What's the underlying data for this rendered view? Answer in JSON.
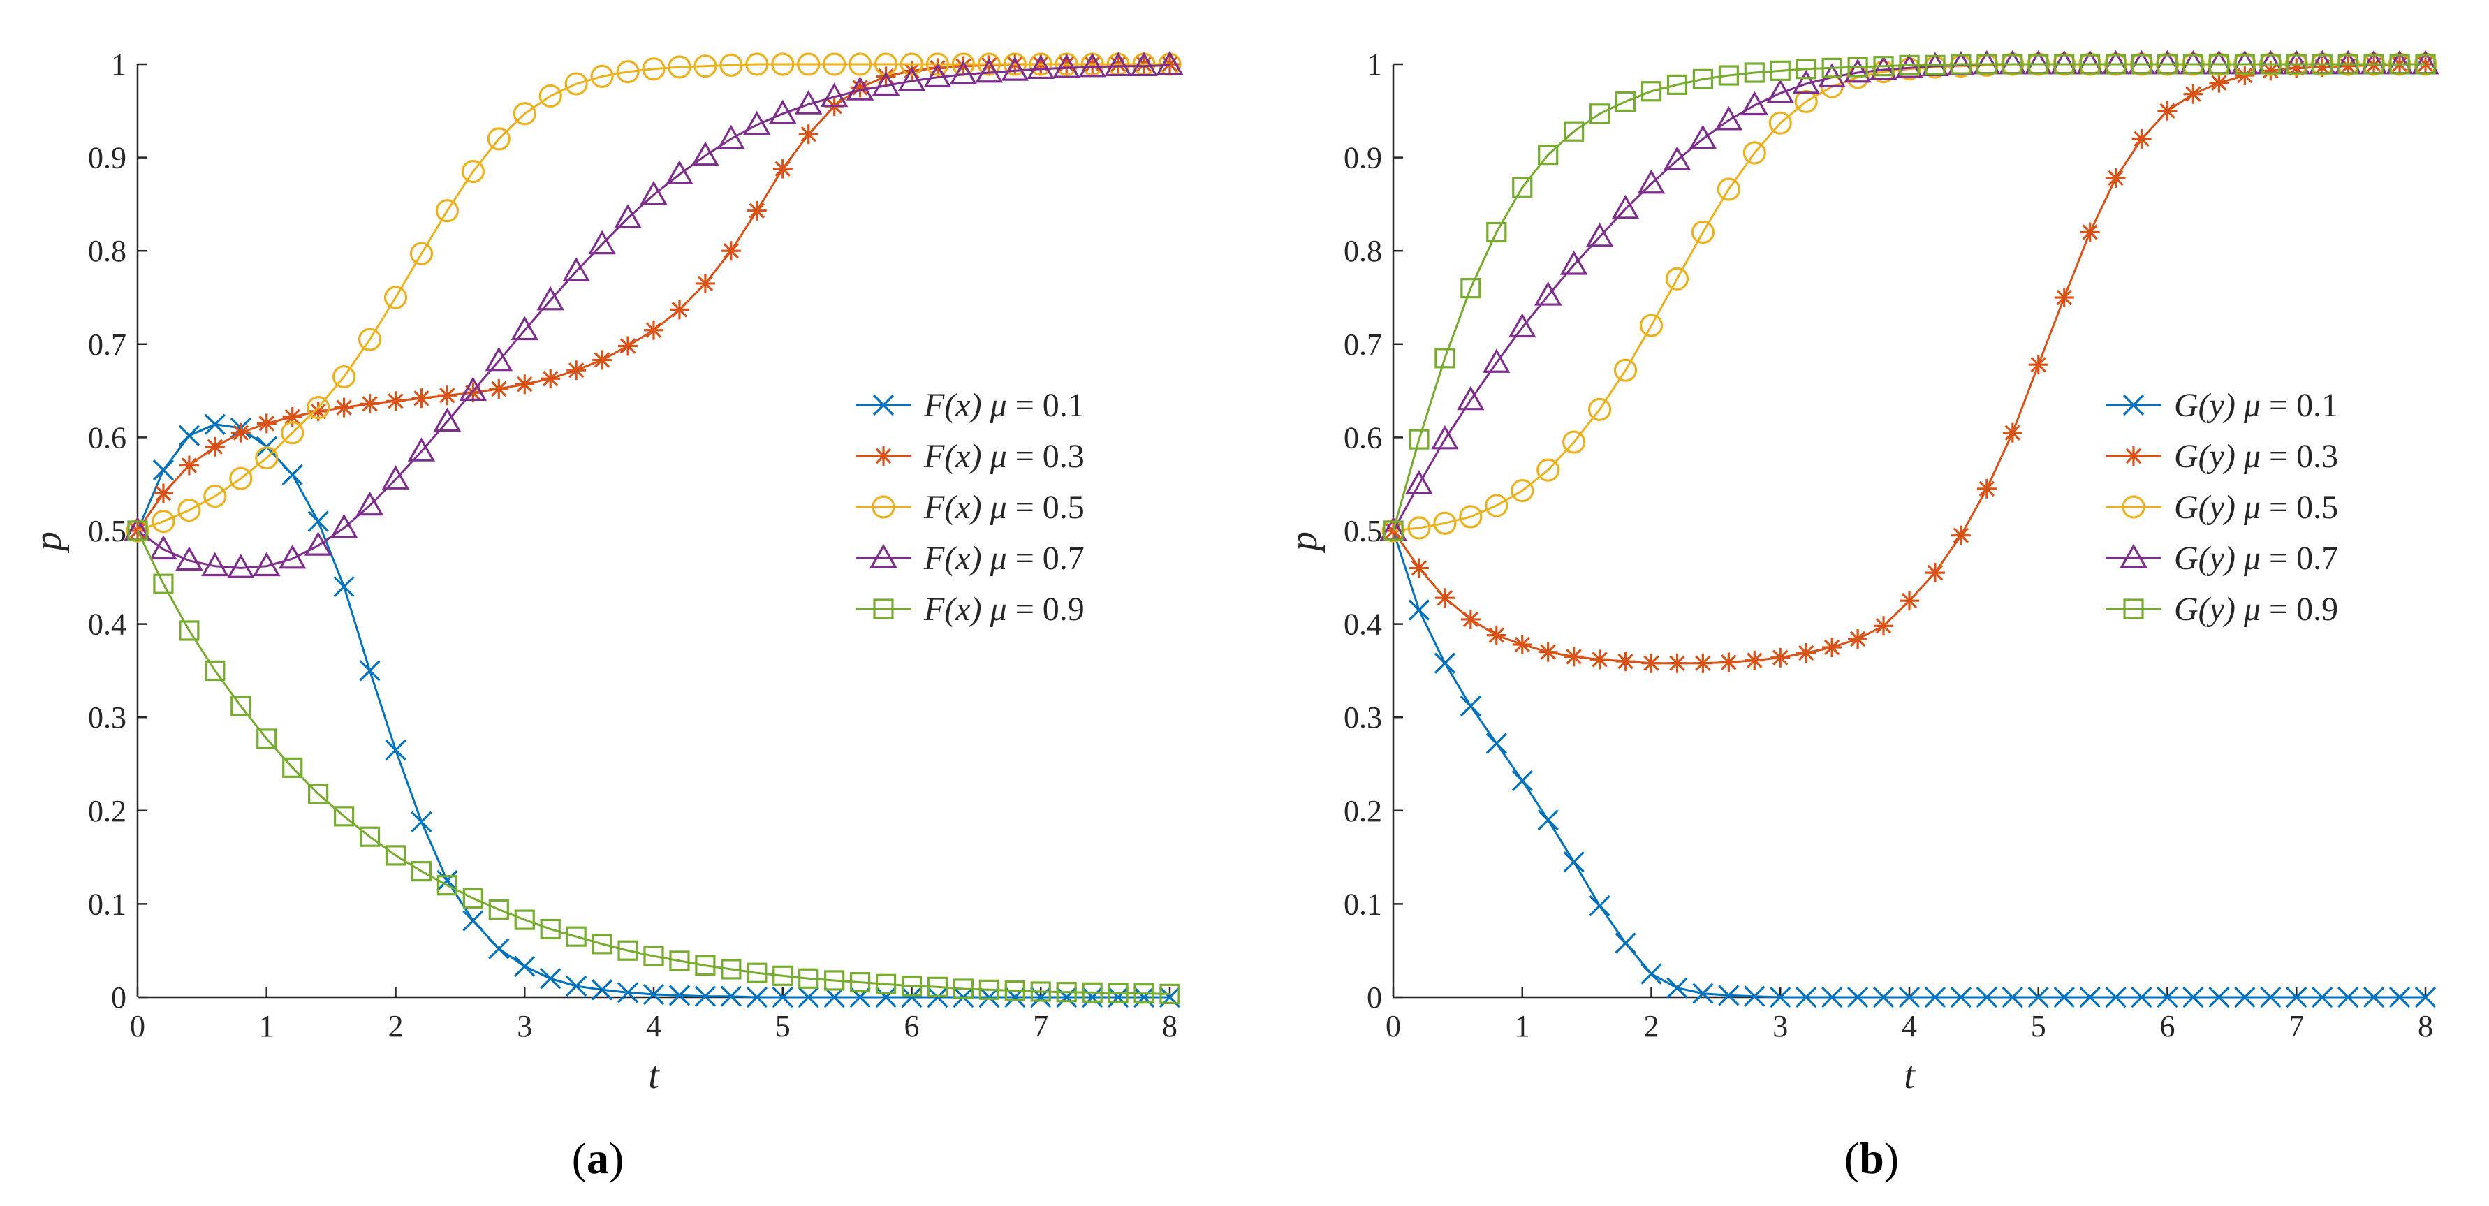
{
  "chart_data": [
    {
      "type": "line",
      "panel_label": "a",
      "xlabel": "t",
      "ylabel": "p",
      "xlim": [
        0,
        8
      ],
      "ylim": [
        0,
        1
      ],
      "xticks": [
        "0",
        "1",
        "2",
        "3",
        "4",
        "5",
        "6",
        "7",
        "8"
      ],
      "yticks": [
        "0",
        "0.1",
        "0.2",
        "0.3",
        "0.4",
        "0.5",
        "0.6",
        "0.7",
        "0.8",
        "0.9",
        "1"
      ],
      "legend_position": "center-right",
      "x": [
        0,
        0.2,
        0.4,
        0.6,
        0.8,
        1.0,
        1.2,
        1.4,
        1.6,
        1.8,
        2.0,
        2.2,
        2.4,
        2.6,
        2.8,
        3.0,
        3.2,
        3.4,
        3.6,
        3.8,
        4.0,
        4.2,
        4.4,
        4.6,
        4.8,
        5.0,
        5.2,
        5.4,
        5.6,
        5.8,
        6.0,
        6.2,
        6.4,
        6.6,
        6.8,
        7.0,
        7.2,
        7.4,
        7.6,
        7.8,
        8.0
      ],
      "series": [
        {
          "func": "F(x)",
          "mu_label": "μ = 0.1",
          "color": "#0072BD",
          "marker": "x",
          "values": [
            0.5,
            0.565,
            0.602,
            0.614,
            0.61,
            0.59,
            0.56,
            0.51,
            0.44,
            0.35,
            0.265,
            0.188,
            0.125,
            0.082,
            0.052,
            0.033,
            0.02,
            0.012,
            0.008,
            0.005,
            0.003,
            0.002,
            0.001,
            0.001,
            0,
            0,
            0,
            0,
            0,
            0,
            0,
            0,
            0,
            0,
            0,
            0,
            0,
            0,
            0,
            0,
            0
          ]
        },
        {
          "func": "F(x)",
          "mu_label": "μ = 0.3",
          "color": "#D95319",
          "marker": "star",
          "values": [
            0.5,
            0.54,
            0.57,
            0.59,
            0.605,
            0.615,
            0.622,
            0.628,
            0.632,
            0.636,
            0.639,
            0.642,
            0.645,
            0.648,
            0.652,
            0.657,
            0.663,
            0.672,
            0.683,
            0.698,
            0.715,
            0.737,
            0.765,
            0.8,
            0.843,
            0.888,
            0.925,
            0.955,
            0.975,
            0.987,
            0.993,
            0.996,
            0.998,
            0.999,
            1.0,
            1.0,
            1.0,
            1.0,
            1.0,
            1.0,
            1.0
          ]
        },
        {
          "func": "F(x)",
          "mu_label": "μ = 0.5",
          "color": "#EDB120",
          "marker": "circle",
          "values": [
            0.5,
            0.51,
            0.522,
            0.537,
            0.556,
            0.578,
            0.605,
            0.632,
            0.665,
            0.705,
            0.75,
            0.797,
            0.843,
            0.885,
            0.92,
            0.947,
            0.966,
            0.979,
            0.987,
            0.992,
            0.995,
            0.997,
            0.998,
            0.999,
            1.0,
            1.0,
            1.0,
            1.0,
            1.0,
            1.0,
            1.0,
            1.0,
            1.0,
            1.0,
            1.0,
            1.0,
            1.0,
            1.0,
            1.0,
            1.0,
            1.0
          ]
        },
        {
          "func": "F(x)",
          "mu_label": "μ = 0.7",
          "color": "#7E2F8E",
          "marker": "triangle",
          "values": [
            0.5,
            0.48,
            0.468,
            0.462,
            0.46,
            0.462,
            0.47,
            0.484,
            0.503,
            0.527,
            0.555,
            0.585,
            0.617,
            0.65,
            0.682,
            0.715,
            0.747,
            0.778,
            0.807,
            0.835,
            0.86,
            0.882,
            0.902,
            0.92,
            0.935,
            0.947,
            0.957,
            0.965,
            0.972,
            0.977,
            0.982,
            0.986,
            0.989,
            0.991,
            0.993,
            0.995,
            0.996,
            0.997,
            0.998,
            0.998,
            0.999
          ]
        },
        {
          "func": "F(x)",
          "mu_label": "μ = 0.9",
          "color": "#77AC30",
          "marker": "square",
          "values": [
            0.5,
            0.443,
            0.393,
            0.35,
            0.312,
            0.277,
            0.246,
            0.218,
            0.194,
            0.172,
            0.152,
            0.135,
            0.12,
            0.106,
            0.094,
            0.083,
            0.073,
            0.065,
            0.057,
            0.05,
            0.044,
            0.039,
            0.034,
            0.03,
            0.026,
            0.023,
            0.02,
            0.018,
            0.016,
            0.014,
            0.012,
            0.011,
            0.009,
            0.008,
            0.007,
            0.006,
            0.0055,
            0.005,
            0.0045,
            0.004,
            0.0035
          ]
        }
      ]
    },
    {
      "type": "line",
      "panel_label": "b",
      "xlabel": "t",
      "ylabel": "p",
      "xlim": [
        0,
        8
      ],
      "ylim": [
        0,
        1
      ],
      "xticks": [
        "0",
        "1",
        "2",
        "3",
        "4",
        "5",
        "6",
        "7",
        "8"
      ],
      "yticks": [
        "0",
        "0.1",
        "0.2",
        "0.3",
        "0.4",
        "0.5",
        "0.6",
        "0.7",
        "0.8",
        "0.9",
        "1"
      ],
      "legend_position": "center-right",
      "x": [
        0,
        0.2,
        0.4,
        0.6,
        0.8,
        1.0,
        1.2,
        1.4,
        1.6,
        1.8,
        2.0,
        2.2,
        2.4,
        2.6,
        2.8,
        3.0,
        3.2,
        3.4,
        3.6,
        3.8,
        4.0,
        4.2,
        4.4,
        4.6,
        4.8,
        5.0,
        5.2,
        5.4,
        5.6,
        5.8,
        6.0,
        6.2,
        6.4,
        6.6,
        6.8,
        7.0,
        7.2,
        7.4,
        7.6,
        7.8,
        8.0
      ],
      "series": [
        {
          "func": "G(y)",
          "mu_label": "μ = 0.1",
          "color": "#0072BD",
          "marker": "x",
          "values": [
            0.5,
            0.415,
            0.358,
            0.312,
            0.272,
            0.232,
            0.19,
            0.145,
            0.098,
            0.058,
            0.025,
            0.01,
            0.004,
            0.002,
            0.001,
            0,
            0,
            0,
            0,
            0,
            0,
            0,
            0,
            0,
            0,
            0,
            0,
            0,
            0,
            0,
            0,
            0,
            0,
            0,
            0,
            0,
            0,
            0,
            0,
            0,
            0
          ]
        },
        {
          "func": "G(y)",
          "mu_label": "μ = 0.3",
          "color": "#D95319",
          "marker": "star",
          "values": [
            0.5,
            0.46,
            0.428,
            0.405,
            0.388,
            0.378,
            0.37,
            0.365,
            0.362,
            0.36,
            0.358,
            0.358,
            0.358,
            0.359,
            0.361,
            0.364,
            0.369,
            0.375,
            0.384,
            0.398,
            0.425,
            0.455,
            0.495,
            0.545,
            0.605,
            0.678,
            0.75,
            0.82,
            0.878,
            0.92,
            0.95,
            0.968,
            0.98,
            0.988,
            0.993,
            0.996,
            0.997,
            0.998,
            0.999,
            1.0,
            1.0
          ]
        },
        {
          "func": "G(y)",
          "mu_label": "μ = 0.5",
          "color": "#EDB120",
          "marker": "circle",
          "values": [
            0.5,
            0.503,
            0.508,
            0.515,
            0.527,
            0.543,
            0.565,
            0.595,
            0.63,
            0.672,
            0.72,
            0.77,
            0.82,
            0.866,
            0.905,
            0.937,
            0.96,
            0.976,
            0.986,
            0.992,
            0.995,
            0.997,
            0.998,
            0.999,
            1.0,
            1.0,
            1.0,
            1.0,
            1.0,
            1.0,
            1.0,
            1.0,
            1.0,
            1.0,
            1.0,
            1.0,
            1.0,
            1.0,
            1.0,
            1.0,
            1.0
          ]
        },
        {
          "func": "G(y)",
          "mu_label": "μ = 0.7",
          "color": "#7E2F8E",
          "marker": "triangle",
          "values": [
            0.5,
            0.55,
            0.598,
            0.64,
            0.68,
            0.718,
            0.752,
            0.785,
            0.815,
            0.845,
            0.872,
            0.897,
            0.92,
            0.94,
            0.956,
            0.969,
            0.979,
            0.986,
            0.991,
            0.994,
            0.996,
            0.998,
            0.999,
            1.0,
            1.0,
            1.0,
            1.0,
            1.0,
            1.0,
            1.0,
            1.0,
            1.0,
            1.0,
            1.0,
            1.0,
            1.0,
            1.0,
            1.0,
            1.0,
            1.0,
            1.0
          ]
        },
        {
          "func": "G(y)",
          "mu_label": "μ = 0.9",
          "color": "#77AC30",
          "marker": "square",
          "values": [
            0.5,
            0.598,
            0.685,
            0.76,
            0.82,
            0.868,
            0.903,
            0.928,
            0.947,
            0.96,
            0.971,
            0.978,
            0.984,
            0.988,
            0.991,
            0.993,
            0.995,
            0.996,
            0.997,
            0.998,
            0.999,
            0.999,
            1.0,
            1.0,
            1.0,
            1.0,
            1.0,
            1.0,
            1.0,
            1.0,
            1.0,
            1.0,
            1.0,
            1.0,
            1.0,
            1.0,
            1.0,
            1.0,
            1.0,
            1.0,
            1.0
          ]
        }
      ]
    }
  ]
}
